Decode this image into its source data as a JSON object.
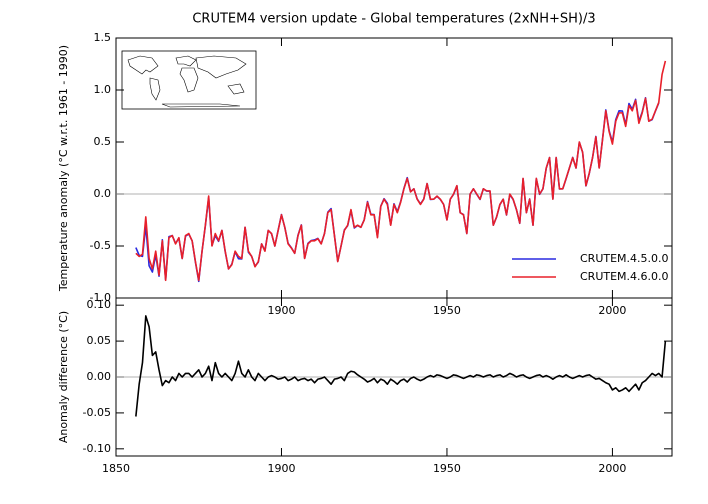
{
  "chart_data": [
    {
      "type": "line",
      "title": "CRUTEM4 version update - Global temperatures (2xNH+SH)/3",
      "y_label": "Temperature anomaly (°C w.r.t. 1961 - 1990)",
      "x": [
        1856,
        1857,
        1858,
        1859,
        1860,
        1861,
        1862,
        1863,
        1864,
        1865,
        1866,
        1867,
        1868,
        1869,
        1870,
        1871,
        1872,
        1873,
        1874,
        1875,
        1876,
        1877,
        1878,
        1879,
        1880,
        1881,
        1882,
        1883,
        1884,
        1885,
        1886,
        1887,
        1888,
        1889,
        1890,
        1891,
        1892,
        1893,
        1894,
        1895,
        1896,
        1897,
        1898,
        1899,
        1900,
        1901,
        1902,
        1903,
        1904,
        1905,
        1906,
        1907,
        1908,
        1909,
        1910,
        1911,
        1912,
        1913,
        1914,
        1915,
        1916,
        1917,
        1918,
        1919,
        1920,
        1921,
        1922,
        1923,
        1924,
        1925,
        1926,
        1927,
        1928,
        1929,
        1930,
        1931,
        1932,
        1933,
        1934,
        1935,
        1936,
        1937,
        1938,
        1939,
        1940,
        1941,
        1942,
        1943,
        1944,
        1945,
        1946,
        1947,
        1948,
        1949,
        1950,
        1951,
        1952,
        1953,
        1954,
        1955,
        1956,
        1957,
        1958,
        1959,
        1960,
        1961,
        1962,
        1963,
        1964,
        1965,
        1966,
        1967,
        1968,
        1969,
        1970,
        1971,
        1972,
        1973,
        1974,
        1975,
        1976,
        1977,
        1978,
        1979,
        1980,
        1981,
        1982,
        1983,
        1984,
        1985,
        1986,
        1987,
        1988,
        1989,
        1990,
        1991,
        1992,
        1993,
        1994,
        1995,
        1996,
        1997,
        1998,
        1999,
        2000,
        2001,
        2002,
        2003,
        2004,
        2005,
        2006,
        2007,
        2008,
        2009,
        2010,
        2011,
        2012,
        2013,
        2014,
        2015,
        2016
      ],
      "series": [
        {
          "name": "CRUTEM.4.5.0.0",
          "color": "#2a2ae0",
          "values": [
            -0.515,
            -0.59,
            -0.6,
            -0.305,
            -0.69,
            -0.75,
            -0.585,
            -0.79,
            -0.44,
            -0.825,
            -0.41,
            -0.4,
            -0.475,
            -0.425,
            -0.62,
            -0.405,
            -0.385,
            -0.45,
            -0.655,
            -0.84,
            -0.55,
            -0.305,
            -0.035,
            -0.495,
            -0.4,
            -0.455,
            -0.35,
            -0.555,
            -0.72,
            -0.675,
            -0.555,
            -0.622,
            -0.625,
            -0.32,
            -0.56,
            -0.6,
            -0.695,
            -0.655,
            -0.48,
            -0.545,
            -0.35,
            -0.382,
            -0.5,
            -0.347,
            -0.198,
            -0.32,
            -0.475,
            -0.517,
            -0.57,
            -0.395,
            -0.297,
            -0.618,
            -0.475,
            -0.447,
            -0.442,
            -0.427,
            -0.478,
            -0.38,
            -0.175,
            -0.14,
            -0.397,
            -0.648,
            -0.5,
            -0.345,
            -0.305,
            -0.158,
            -0.327,
            -0.303,
            -0.32,
            -0.247,
            -0.073,
            -0.195,
            -0.198,
            -0.412,
            -0.117,
            -0.045,
            -0.09,
            -0.297,
            -0.094,
            -0.17,
            -0.075,
            0.053,
            0.157,
            0.022,
            0.05,
            -0.047,
            -0.095,
            -0.047,
            0.1,
            -0.052,
            -0.05,
            -0.023,
            -0.052,
            -0.1,
            -0.248,
            -0.05,
            -0.003,
            0.078,
            -0.18,
            -0.198,
            -0.38,
            -0.002,
            0.05,
            -0.003,
            -0.052,
            0.05,
            0.028,
            0.027,
            -0.3,
            -0.222,
            -0.103,
            -0.05,
            -0.202,
            -0.005,
            -0.053,
            -0.15,
            -0.282,
            0.147,
            -0.18,
            -0.048,
            -0.3,
            0.148,
            -0.003,
            0.05,
            0.248,
            0.35,
            -0.047,
            0.35,
            0.048,
            0.05,
            0.147,
            0.25,
            0.352,
            0.25,
            0.498,
            0.4,
            0.078,
            0.197,
            0.35,
            0.553,
            0.252,
            0.525,
            0.808,
            0.61,
            0.498,
            0.715,
            0.8,
            0.798,
            0.665,
            0.87,
            0.815,
            0.91,
            0.698,
            0.788,
            0.925,
            0.7,
            0.715,
            0.798,
            0.875,
            null,
            null
          ]
        },
        {
          "name": "CRUTEM.4.6.0.0",
          "color": "#e8202a",
          "values": [
            -0.57,
            -0.6,
            -0.58,
            -0.22,
            -0.62,
            -0.72,
            -0.55,
            -0.78,
            -0.45,
            -0.83,
            -0.42,
            -0.4,
            -0.48,
            -0.42,
            -0.62,
            -0.4,
            -0.38,
            -0.45,
            -0.65,
            -0.83,
            -0.55,
            -0.3,
            -0.02,
            -0.5,
            -0.38,
            -0.45,
            -0.35,
            -0.55,
            -0.72,
            -0.68,
            -0.55,
            -0.6,
            -0.62,
            -0.32,
            -0.55,
            -0.6,
            -0.7,
            -0.65,
            -0.48,
            -0.55,
            -0.35,
            -0.38,
            -0.5,
            -0.35,
            -0.2,
            -0.32,
            -0.48,
            -0.52,
            -0.57,
            -0.4,
            -0.3,
            -0.62,
            -0.48,
            -0.45,
            -0.45,
            -0.43,
            -0.48,
            -0.38,
            -0.18,
            -0.15,
            -0.4,
            -0.65,
            -0.5,
            -0.35,
            -0.3,
            -0.15,
            -0.32,
            -0.3,
            -0.32,
            -0.25,
            -0.08,
            -0.2,
            -0.2,
            -0.42,
            -0.12,
            -0.05,
            -0.1,
            -0.3,
            -0.1,
            -0.18,
            -0.08,
            0.05,
            0.15,
            0.02,
            0.05,
            -0.05,
            -0.1,
            -0.05,
            0.1,
            -0.05,
            -0.05,
            -0.02,
            -0.05,
            -0.1,
            -0.25,
            -0.05,
            0.0,
            0.08,
            -0.18,
            -0.2,
            -0.38,
            0.0,
            0.05,
            0.0,
            -0.05,
            0.05,
            0.03,
            0.03,
            -0.3,
            -0.22,
            -0.1,
            -0.05,
            -0.2,
            0.0,
            -0.05,
            -0.15,
            -0.28,
            0.15,
            -0.18,
            -0.05,
            -0.3,
            0.15,
            0.0,
            0.05,
            0.25,
            0.35,
            -0.05,
            0.35,
            0.05,
            0.05,
            0.15,
            0.25,
            0.35,
            0.25,
            0.5,
            0.4,
            0.08,
            0.2,
            0.35,
            0.55,
            0.25,
            0.52,
            0.8,
            0.6,
            0.48,
            0.7,
            0.78,
            0.78,
            0.65,
            0.85,
            0.8,
            0.9,
            0.68,
            0.78,
            0.92,
            0.7,
            0.72,
            0.8,
            0.88,
            1.15,
            1.28
          ]
        }
      ],
      "xlim": [
        1850,
        2018
      ],
      "ylim": [
        -1.0,
        1.5
      ],
      "xticks": [
        1900,
        1950,
        2000
      ],
      "yticks": [
        {
          "value": -1.0,
          "label": "-1.0"
        },
        -0.5,
        {
          "value": 0,
          "label": "0.0"
        },
        0.5,
        {
          "value": 1.0,
          "label": "1.0"
        },
        1.5
      ],
      "zero_line": true,
      "legend": "lower right"
    },
    {
      "type": "line",
      "y_label": "Anomaly difference (°C)",
      "x": [
        1856,
        1857,
        1858,
        1859,
        1860,
        1861,
        1862,
        1863,
        1864,
        1865,
        1866,
        1867,
        1868,
        1869,
        1870,
        1871,
        1872,
        1873,
        1874,
        1875,
        1876,
        1877,
        1878,
        1879,
        1880,
        1881,
        1882,
        1883,
        1884,
        1885,
        1886,
        1887,
        1888,
        1889,
        1890,
        1891,
        1892,
        1893,
        1894,
        1895,
        1896,
        1897,
        1898,
        1899,
        1900,
        1901,
        1902,
        1903,
        1904,
        1905,
        1906,
        1907,
        1908,
        1909,
        1910,
        1911,
        1912,
        1913,
        1914,
        1915,
        1916,
        1917,
        1918,
        1919,
        1920,
        1921,
        1922,
        1923,
        1924,
        1925,
        1926,
        1927,
        1928,
        1929,
        1930,
        1931,
        1932,
        1933,
        1934,
        1935,
        1936,
        1937,
        1938,
        1939,
        1940,
        1941,
        1942,
        1943,
        1944,
        1945,
        1946,
        1947,
        1948,
        1949,
        1950,
        1951,
        1952,
        1953,
        1954,
        1955,
        1956,
        1957,
        1958,
        1959,
        1960,
        1961,
        1962,
        1963,
        1964,
        1965,
        1966,
        1967,
        1968,
        1969,
        1970,
        1971,
        1972,
        1973,
        1974,
        1975,
        1976,
        1977,
        1978,
        1979,
        1980,
        1981,
        1982,
        1983,
        1984,
        1985,
        1986,
        1987,
        1988,
        1989,
        1990,
        1991,
        1992,
        1993,
        1994,
        1995,
        1996,
        1997,
        1998,
        1999,
        2000,
        2001,
        2002,
        2003,
        2004,
        2005,
        2006,
        2007,
        2008,
        2009,
        2010,
        2011,
        2012,
        2013,
        2014,
        2015,
        2016
      ],
      "series": [
        {
          "color": "#000000",
          "values": [
            -0.055,
            -0.01,
            0.02,
            0.085,
            0.07,
            0.03,
            0.035,
            0.01,
            -0.012,
            -0.005,
            -0.008,
            0.0,
            -0.005,
            0.005,
            0.0,
            0.005,
            0.005,
            0.0,
            0.005,
            0.01,
            0.0,
            0.005,
            0.015,
            -0.005,
            0.02,
            0.005,
            0.0,
            0.005,
            0.0,
            -0.005,
            0.005,
            0.022,
            0.005,
            0.0,
            0.01,
            0.0,
            -0.005,
            0.005,
            0.0,
            -0.005,
            0.0,
            0.002,
            0.0,
            -0.003,
            -0.002,
            0.0,
            -0.005,
            -0.003,
            0.0,
            -0.005,
            -0.003,
            -0.002,
            -0.005,
            -0.003,
            -0.008,
            -0.003,
            -0.002,
            0.0,
            -0.005,
            -0.01,
            -0.003,
            -0.002,
            0.0,
            -0.005,
            0.005,
            0.008,
            0.007,
            0.003,
            0.0,
            -0.003,
            -0.007,
            -0.005,
            -0.002,
            -0.008,
            -0.003,
            -0.005,
            -0.01,
            -0.003,
            -0.006,
            -0.01,
            -0.005,
            -0.003,
            -0.007,
            -0.002,
            0.0,
            -0.003,
            -0.005,
            -0.003,
            0.0,
            0.002,
            0.0,
            0.003,
            0.002,
            0.0,
            -0.002,
            0.0,
            0.003,
            0.002,
            0.0,
            -0.002,
            0.0,
            0.002,
            0.0,
            0.003,
            0.002,
            0.0,
            0.002,
            0.003,
            0.0,
            0.002,
            0.003,
            0.0,
            0.002,
            0.005,
            0.003,
            0.0,
            0.002,
            0.003,
            0.0,
            -0.002,
            0.0,
            0.002,
            0.003,
            0.0,
            0.002,
            0.0,
            -0.003,
            0.0,
            0.002,
            0.0,
            0.003,
            0.0,
            -0.002,
            0.0,
            0.002,
            0.0,
            0.002,
            0.003,
            0.0,
            -0.003,
            -0.002,
            -0.005,
            -0.008,
            -0.01,
            -0.018,
            -0.015,
            -0.02,
            -0.018,
            -0.015,
            -0.02,
            -0.015,
            -0.01,
            -0.018,
            -0.008,
            -0.005,
            0.0,
            0.005,
            0.002,
            0.005,
            0.0,
            0.05
          ]
        }
      ],
      "xlim": [
        1850,
        2018
      ],
      "ylim": [
        -0.11,
        0.11
      ],
      "xticks": [
        1850,
        1900,
        1950,
        2000
      ],
      "yticks": [
        {
          "value": -0.1,
          "label": "-0.10"
        },
        -0.05,
        {
          "value": 0,
          "label": "0.00"
        },
        0.05,
        {
          "value": 0.1,
          "label": "0.10"
        }
      ],
      "zero_line": true
    }
  ]
}
